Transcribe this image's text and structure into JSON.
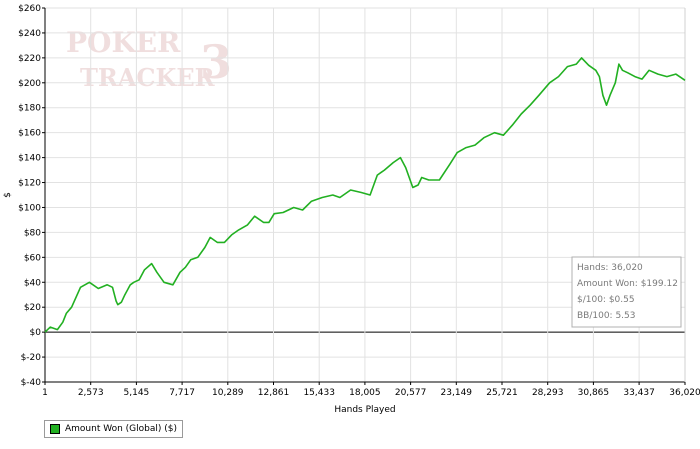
{
  "chart_data": {
    "type": "line",
    "xlabel": "Hands Played",
    "ylabel": "$",
    "xlim": [
      1,
      36020
    ],
    "ylim": [
      -40,
      260
    ],
    "x_ticks": [
      1,
      2573,
      5145,
      7717,
      10289,
      12861,
      15433,
      18005,
      20577,
      23149,
      25721,
      28293,
      30865,
      33437,
      36020
    ],
    "x_tick_labels": [
      "1",
      "2,573",
      "5,145",
      "7,717",
      "10,289",
      "12,861",
      "15,433",
      "18,005",
      "20,577",
      "23,149",
      "25,721",
      "28,293",
      "30,865",
      "33,437",
      "36,020"
    ],
    "y_ticks": [
      -40,
      -20,
      0,
      20,
      40,
      60,
      80,
      100,
      120,
      140,
      160,
      180,
      200,
      220,
      240,
      260
    ],
    "y_tick_labels": [
      "$-40",
      "$-20",
      "$0",
      "$20",
      "$40",
      "$60",
      "$80",
      "$100",
      "$120",
      "$140",
      "$160",
      "$180",
      "$200",
      "$220",
      "$240",
      "$260"
    ],
    "grid": true,
    "legend_position": "bottom-left",
    "series": [
      {
        "name": "Amount Won (Global) ($)",
        "color": "#22b022",
        "x": [
          1,
          300,
          700,
          1000,
          1200,
          1500,
          2000,
          2500,
          3000,
          3500,
          3800,
          4000,
          4100,
          4300,
          4500,
          4800,
          5000,
          5300,
          5600,
          6000,
          6300,
          6700,
          7200,
          7600,
          7900,
          8200,
          8600,
          9000,
          9300,
          9700,
          10100,
          10500,
          10900,
          11400,
          11800,
          12300,
          12600,
          12900,
          13400,
          14000,
          14500,
          15000,
          15600,
          16200,
          16600,
          17200,
          17800,
          18300,
          18700,
          19100,
          19600,
          20000,
          20300,
          20700,
          21000,
          21200,
          21600,
          22200,
          22800,
          23200,
          23700,
          24200,
          24700,
          25300,
          25800,
          26300,
          26800,
          27300,
          27800,
          28400,
          28900,
          29400,
          29900,
          30200,
          30600,
          31000,
          31200,
          31400,
          31600,
          31800,
          32100,
          32300,
          32500,
          32800,
          33200,
          33600,
          34000,
          34500,
          35000,
          35500,
          36020
        ],
        "values": [
          0,
          4,
          2,
          8,
          15,
          20,
          36,
          40,
          35,
          38,
          36,
          25,
          22,
          24,
          30,
          38,
          40,
          42,
          50,
          55,
          48,
          40,
          38,
          48,
          52,
          58,
          60,
          68,
          76,
          72,
          72,
          78,
          82,
          86,
          93,
          88,
          88,
          95,
          96,
          100,
          98,
          105,
          108,
          110,
          108,
          114,
          112,
          110,
          126,
          130,
          136,
          140,
          132,
          116,
          118,
          124,
          122,
          122,
          135,
          144,
          148,
          150,
          156,
          160,
          158,
          166,
          175,
          182,
          190,
          200,
          205,
          213,
          215,
          220,
          214,
          210,
          205,
          190,
          182,
          190,
          200,
          215,
          210,
          208,
          205,
          203,
          210,
          207,
          205,
          207,
          202
        ]
      }
    ],
    "info_box": {
      "hands": "Hands: 36,020",
      "amount_won": "Amount Won: $199.12",
      "per100": "$/100: $0.55",
      "bb100": "BB/100: 5.53"
    },
    "watermark": [
      "POKER",
      "TRACKER",
      "3"
    ]
  }
}
